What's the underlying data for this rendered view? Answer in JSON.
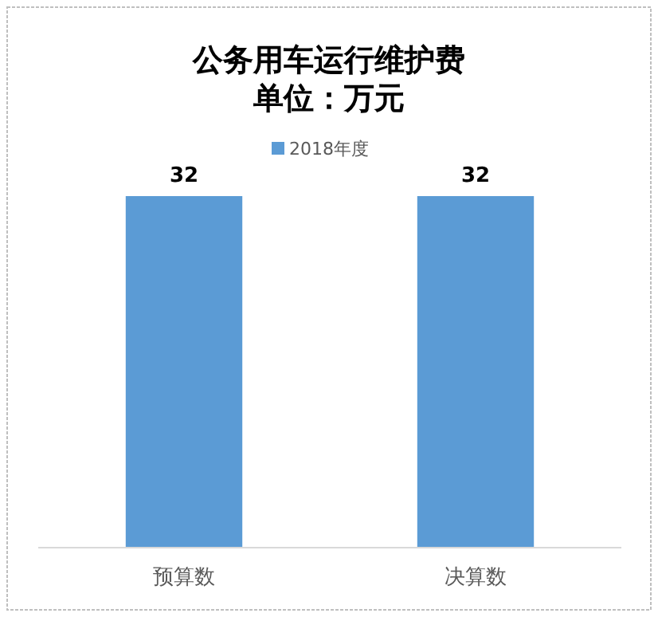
{
  "chart_data": {
    "type": "bar",
    "title": "公务用车运行维护费",
    "subtitle": "单位：万元",
    "categories": [
      "预算数",
      "决算数"
    ],
    "series": [
      {
        "name": "2018年度",
        "color": "#5b9bd5",
        "values": [
          32,
          32
        ]
      }
    ],
    "data_labels": true,
    "legend": "top"
  }
}
